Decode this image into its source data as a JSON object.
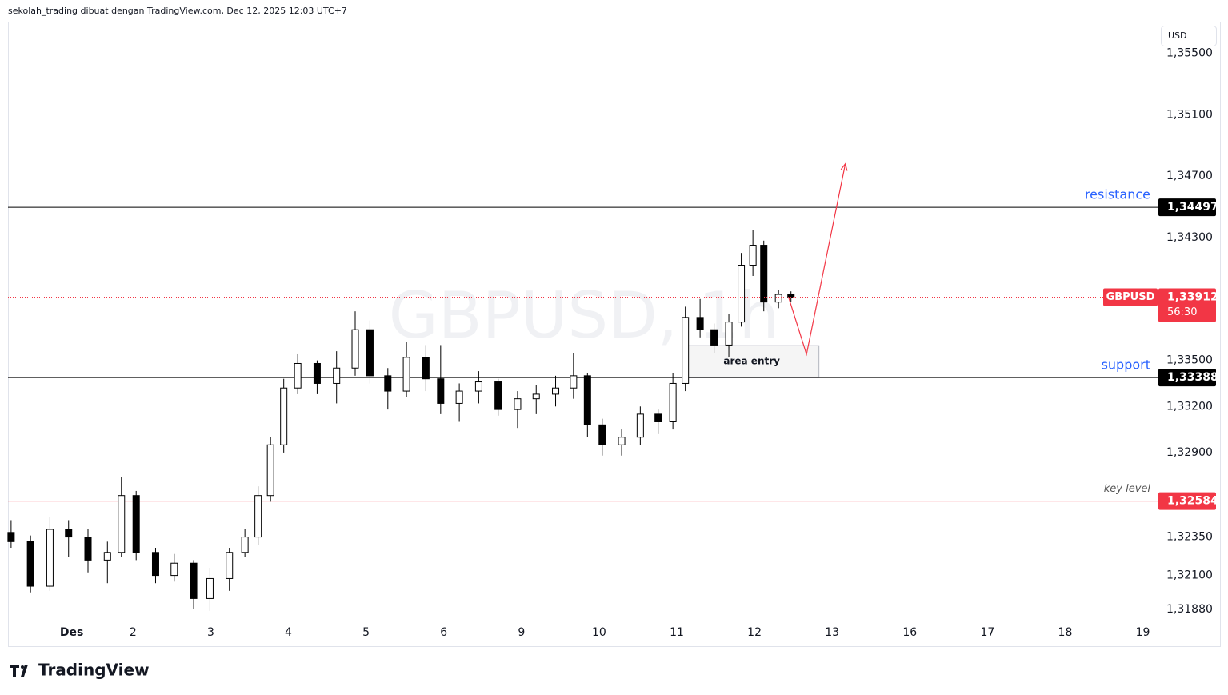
{
  "header": "sekolah_trading dibuat dengan TradingView.com, Dec 12, 2025 12:03 UTC+7",
  "currency": "USD",
  "brand": "TradingView",
  "chart_data": {
    "type": "candlestick",
    "watermark": "GBPUSD, 1h",
    "ylim": [
      1.31796,
      1.357
    ],
    "xlim": [
      0,
      14.8
    ],
    "yticks": [
      {
        "value": 1.355,
        "label": "1,35500"
      },
      {
        "value": 1.351,
        "label": "1,35100"
      },
      {
        "value": 1.347,
        "label": "1,34700"
      },
      {
        "value": 1.343,
        "label": "1,34300"
      },
      {
        "value": 1.335,
        "label": "1,33500"
      },
      {
        "value": 1.332,
        "label": "1,33200"
      },
      {
        "value": 1.329,
        "label": "1,32900"
      },
      {
        "value": 1.3235,
        "label": "1,32350"
      },
      {
        "value": 1.321,
        "label": "1,32100"
      },
      {
        "value": 1.3188,
        "label": "1,31880"
      }
    ],
    "xticks": [
      {
        "value": 0.82,
        "label": "Des"
      },
      {
        "value": 1.61,
        "label": "2"
      },
      {
        "value": 2.61,
        "label": "3"
      },
      {
        "value": 3.61,
        "label": "4"
      },
      {
        "value": 4.61,
        "label": "5"
      },
      {
        "value": 5.61,
        "label": "6"
      },
      {
        "value": 6.61,
        "label": "9"
      },
      {
        "value": 7.61,
        "label": "10"
      },
      {
        "value": 8.61,
        "label": "11"
      },
      {
        "value": 9.61,
        "label": "12"
      },
      {
        "value": 10.61,
        "label": "13"
      },
      {
        "value": 11.61,
        "label": "16"
      },
      {
        "value": 12.61,
        "label": "17"
      },
      {
        "value": 13.61,
        "label": "18"
      },
      {
        "value": 14.61,
        "label": "19"
      }
    ],
    "up_color": "#ffffff",
    "down_color": "#000000",
    "series": [
      {
        "name": "GBPUSD",
        "x": [
          0.04,
          0.29,
          0.54,
          0.78,
          1.03,
          1.28,
          1.46,
          1.65,
          1.9,
          2.14,
          2.39,
          2.6,
          2.85,
          3.05,
          3.22,
          3.38,
          3.55,
          3.73,
          3.98,
          4.23,
          4.47,
          4.66,
          4.89,
          5.13,
          5.38,
          5.57,
          5.81,
          6.06,
          6.31,
          6.56,
          6.8,
          7.05,
          7.28,
          7.46,
          7.65,
          7.9,
          8.14,
          8.37,
          8.56,
          8.72,
          8.91,
          9.09,
          9.28,
          9.44,
          9.59,
          9.73,
          9.92,
          10.08
        ],
        "open": [
          1.3238,
          1.3232,
          1.3203,
          1.324,
          1.3235,
          1.322,
          1.3225,
          1.3262,
          1.3225,
          1.321,
          1.3218,
          1.3195,
          1.3208,
          1.3225,
          1.3235,
          1.3262,
          1.3295,
          1.3332,
          1.3348,
          1.3335,
          1.3345,
          1.337,
          1.334,
          1.333,
          1.3352,
          1.3338,
          1.3322,
          1.333,
          1.3336,
          1.3318,
          1.3325,
          1.3328,
          1.3332,
          1.334,
          1.3308,
          1.3295,
          1.33,
          1.3315,
          1.331,
          1.3335,
          1.3378,
          1.337,
          1.336,
          1.3375,
          1.3412,
          1.3425,
          1.3388,
          1.3393
        ],
        "high": [
          1.3246,
          1.3236,
          1.3248,
          1.3246,
          1.324,
          1.3232,
          1.3274,
          1.3265,
          1.3228,
          1.3224,
          1.322,
          1.3215,
          1.3228,
          1.324,
          1.3268,
          1.33,
          1.3338,
          1.3354,
          1.335,
          1.3356,
          1.3382,
          1.3376,
          1.3345,
          1.3362,
          1.336,
          1.336,
          1.3335,
          1.3343,
          1.3338,
          1.333,
          1.3334,
          1.334,
          1.3355,
          1.3342,
          1.3312,
          1.3305,
          1.332,
          1.3318,
          1.3342,
          1.3385,
          1.339,
          1.3374,
          1.338,
          1.342,
          1.3435,
          1.3428,
          1.3396,
          1.3395
        ],
        "low": [
          1.3228,
          1.3199,
          1.32,
          1.3222,
          1.3212,
          1.3205,
          1.3222,
          1.322,
          1.3205,
          1.3206,
          1.3188,
          1.3187,
          1.32,
          1.3222,
          1.323,
          1.3258,
          1.329,
          1.3328,
          1.3328,
          1.3322,
          1.334,
          1.3335,
          1.3318,
          1.3326,
          1.333,
          1.3315,
          1.331,
          1.3322,
          1.3314,
          1.3306,
          1.3315,
          1.332,
          1.3325,
          1.33,
          1.3288,
          1.3288,
          1.3295,
          1.3302,
          1.3305,
          1.333,
          1.3365,
          1.3355,
          1.3352,
          1.3372,
          1.3405,
          1.3382,
          1.3384,
          1.3388
        ],
        "close": [
          1.3232,
          1.3203,
          1.324,
          1.3235,
          1.322,
          1.3225,
          1.3262,
          1.3225,
          1.321,
          1.3218,
          1.3195,
          1.3208,
          1.3225,
          1.3235,
          1.3262,
          1.3295,
          1.3332,
          1.3348,
          1.3335,
          1.3345,
          1.337,
          1.334,
          1.333,
          1.3352,
          1.3338,
          1.3322,
          1.333,
          1.3336,
          1.3318,
          1.3325,
          1.3328,
          1.3332,
          1.334,
          1.3308,
          1.3295,
          1.33,
          1.3315,
          1.331,
          1.3335,
          1.3378,
          1.337,
          1.336,
          1.3375,
          1.3412,
          1.3425,
          1.3388,
          1.3393,
          1.33912
        ]
      }
    ],
    "last_price": {
      "value": 1.33912,
      "label": "1,33912",
      "countdown": "56:30",
      "color": "#f23645"
    },
    "levels": [
      {
        "name": "resistance",
        "price": {
          "value": 1.34497,
          "label": "1,34497"
        },
        "color": "#000000",
        "text_color": "#2962ff"
      },
      {
        "name": "support",
        "price": {
          "value": 1.33388,
          "label": "1,33388"
        },
        "color": "#000000",
        "text_color": "#2962ff"
      },
      {
        "name": "key level",
        "price": {
          "value": 1.32584,
          "label": "1,32584"
        },
        "color": "#f23645",
        "text_color": "#555555"
      }
    ],
    "zone": {
      "label": "area entry",
      "x": [
        8.71,
        10.44
      ],
      "y": [
        1.33388,
        1.33596
      ]
    },
    "projection": {
      "x": [
        10.05,
        10.28,
        10.78
      ],
      "y": [
        1.3391,
        1.3354,
        1.3478
      ],
      "color": "#f23645"
    }
  }
}
